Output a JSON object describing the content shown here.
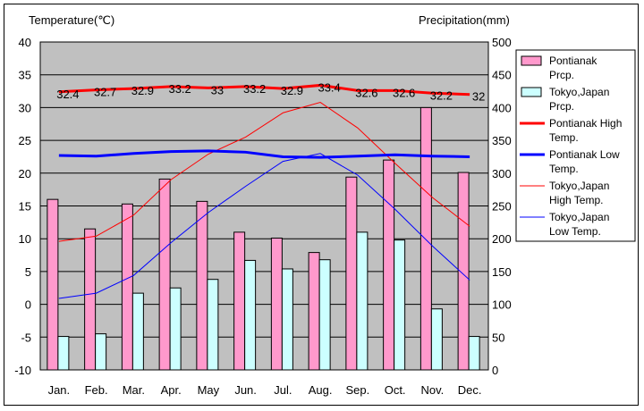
{
  "chart_data": {
    "type": "bar+line",
    "left_axis_label": "Temperature(℃)",
    "right_axis_label": "Precipitation(mm)",
    "categories": [
      "Jan.",
      "Feb.",
      "Mar.",
      "Apr.",
      "May",
      "Jun.",
      "Jul.",
      "Aug.",
      "Sep.",
      "Oct.",
      "Nov.",
      "Dec."
    ],
    "left_ylim": [
      -10,
      40
    ],
    "left_ticks": [
      -10,
      -5,
      0,
      5,
      10,
      15,
      20,
      25,
      30,
      35,
      40
    ],
    "right_ylim": [
      0,
      500
    ],
    "right_ticks": [
      0,
      50,
      100,
      150,
      200,
      250,
      300,
      350,
      400,
      450,
      500
    ],
    "grid": "horizontal",
    "legend_position": "right",
    "bar_series": [
      {
        "name": "Pontianak Prcp.",
        "color": "#ff99cc",
        "values": [
          260,
          215,
          253,
          291,
          257,
          210,
          201,
          179,
          294,
          320,
          400,
          301
        ]
      },
      {
        "name": "Tokyo,Japan Prcp.",
        "color": "#ccffff",
        "values": [
          51,
          55,
          117,
          125,
          138,
          167,
          154,
          168,
          210,
          198,
          93,
          51
        ]
      }
    ],
    "line_series": [
      {
        "name": "Pontianak High Temp.",
        "color": "#ff0000",
        "width": 3,
        "values": [
          32.4,
          32.7,
          32.9,
          33.2,
          33,
          33.2,
          32.9,
          33.4,
          32.6,
          32.6,
          32.2,
          32
        ],
        "labels": [
          "32.4",
          "32.7",
          "32.9",
          "33.2",
          "33",
          "33.2",
          "32.9",
          "33.4",
          "32.6",
          "32.6",
          "32.2",
          "32"
        ]
      },
      {
        "name": "Pontianak Low Temp.",
        "color": "#0000ff",
        "width": 3,
        "values": [
          22.7,
          22.6,
          23,
          23.3,
          23.4,
          23.2,
          22.5,
          22.4,
          22.6,
          22.8,
          22.6,
          22.5
        ]
      },
      {
        "name": "Tokyo,Japan High Temp.",
        "color": "#ff0000",
        "width": 1,
        "values": [
          9.6,
          10.4,
          13.6,
          19,
          22.9,
          25.5,
          29.2,
          30.8,
          26.9,
          21.5,
          16.3,
          11.9
        ]
      },
      {
        "name": "Tokyo,Japan Low Temp.",
        "color": "#0000ff",
        "width": 1,
        "values": [
          0.9,
          1.7,
          4.4,
          9.4,
          14,
          18,
          21.8,
          23,
          19.7,
          14.5,
          8.9,
          3.7
        ]
      }
    ],
    "legend": [
      {
        "line1": "Pontianak",
        "line2": "Prcp."
      },
      {
        "line1": "Tokyo,Japan",
        "line2": "Prcp."
      },
      {
        "line1": "Pontianak High",
        "line2": "Temp."
      },
      {
        "line1": "Pontianak Low",
        "line2": "Temp."
      },
      {
        "line1": "Tokyo,Japan",
        "line2": "High Temp."
      },
      {
        "line1": "Tokyo,Japan",
        "line2": "Low Temp."
      }
    ]
  }
}
